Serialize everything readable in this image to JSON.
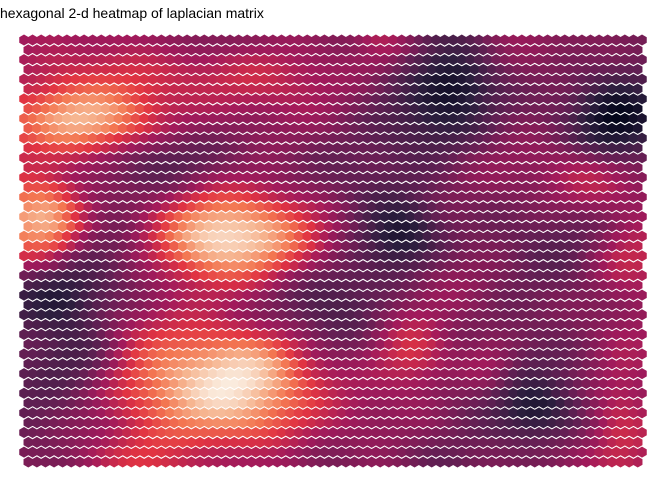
{
  "chart_data": {
    "type": "heatmap",
    "subtype": "hexbin",
    "title": "hexagonal 2-d heatmap of laplacian matrix",
    "xlabel": "",
    "ylabel": "",
    "grid": false,
    "legend": "none",
    "colormap": [
      "#03051a",
      "#2c1e3e",
      "#611f53",
      "#a11a5b",
      "#e13342",
      "#f37651",
      "#f6b48f",
      "#faebdd"
    ],
    "hex_columns": 73,
    "hex_rows": 44,
    "smoothing_passes": 4,
    "color_value_range": [
      0.0,
      1.0
    ],
    "intensity_fields": [
      {
        "x": 0.1,
        "y": 0.19,
        "sx": 0.09,
        "sy": 0.05,
        "w": 0.95
      },
      {
        "x": 0.03,
        "y": 0.43,
        "sx": 0.04,
        "sy": 0.06,
        "w": 0.95
      },
      {
        "x": 0.28,
        "y": 0.08,
        "sx": 0.18,
        "sy": 0.05,
        "w": 0.3
      },
      {
        "x": 0.37,
        "y": 0.47,
        "sx": 0.09,
        "sy": 0.07,
        "w": 0.75
      },
      {
        "x": 0.29,
        "y": 0.47,
        "sx": 0.06,
        "sy": 0.06,
        "w": 0.4
      },
      {
        "x": 0.34,
        "y": 0.86,
        "sx": 0.09,
        "sy": 0.08,
        "w": 0.85
      },
      {
        "x": 0.38,
        "y": 0.76,
        "sx": 0.06,
        "sy": 0.05,
        "w": 0.45
      },
      {
        "x": 0.22,
        "y": 0.78,
        "sx": 0.1,
        "sy": 0.1,
        "w": 0.35
      },
      {
        "x": 0.63,
        "y": 0.74,
        "sx": 0.04,
        "sy": 0.05,
        "w": 0.4
      },
      {
        "x": 0.75,
        "y": 0.77,
        "sx": 0.03,
        "sy": 0.04,
        "w": 0.3
      },
      {
        "x": 0.98,
        "y": 0.52,
        "sx": 0.04,
        "sy": 0.05,
        "w": 0.35
      },
      {
        "x": 0.92,
        "y": 0.33,
        "sx": 0.06,
        "sy": 0.05,
        "w": 0.3
      },
      {
        "x": 0.97,
        "y": 0.9,
        "sx": 0.03,
        "sy": 0.1,
        "w": 0.3
      },
      {
        "x": 0.58,
        "y": 0.01,
        "sx": 0.03,
        "sy": 0.03,
        "w": 0.3
      },
      {
        "x": 0.18,
        "y": 0.98,
        "sx": 0.05,
        "sy": 0.03,
        "w": 0.25
      },
      {
        "x": 0.67,
        "y": 0.2,
        "sx": 0.06,
        "sy": 0.06,
        "w": -0.3
      },
      {
        "x": 0.61,
        "y": 0.47,
        "sx": 0.04,
        "sy": 0.05,
        "w": -0.5
      },
      {
        "x": 0.96,
        "y": 0.19,
        "sx": 0.04,
        "sy": 0.06,
        "w": -0.5
      },
      {
        "x": 0.7,
        "y": 0.1,
        "sx": 0.04,
        "sy": 0.05,
        "w": -0.4
      },
      {
        "x": 0.83,
        "y": 0.88,
        "sx": 0.04,
        "sy": 0.04,
        "w": -0.45
      },
      {
        "x": 0.05,
        "y": 0.62,
        "sx": 0.05,
        "sy": 0.05,
        "w": -0.4
      },
      {
        "x": 0.1,
        "y": 0.75,
        "sx": 0.05,
        "sy": 0.05,
        "w": -0.3
      },
      {
        "x": 0.5,
        "y": 0.58,
        "sx": 0.06,
        "sy": 0.06,
        "w": -0.2
      },
      {
        "x": 0.22,
        "y": 0.28,
        "sx": 0.05,
        "sy": 0.04,
        "w": -0.15
      }
    ]
  }
}
